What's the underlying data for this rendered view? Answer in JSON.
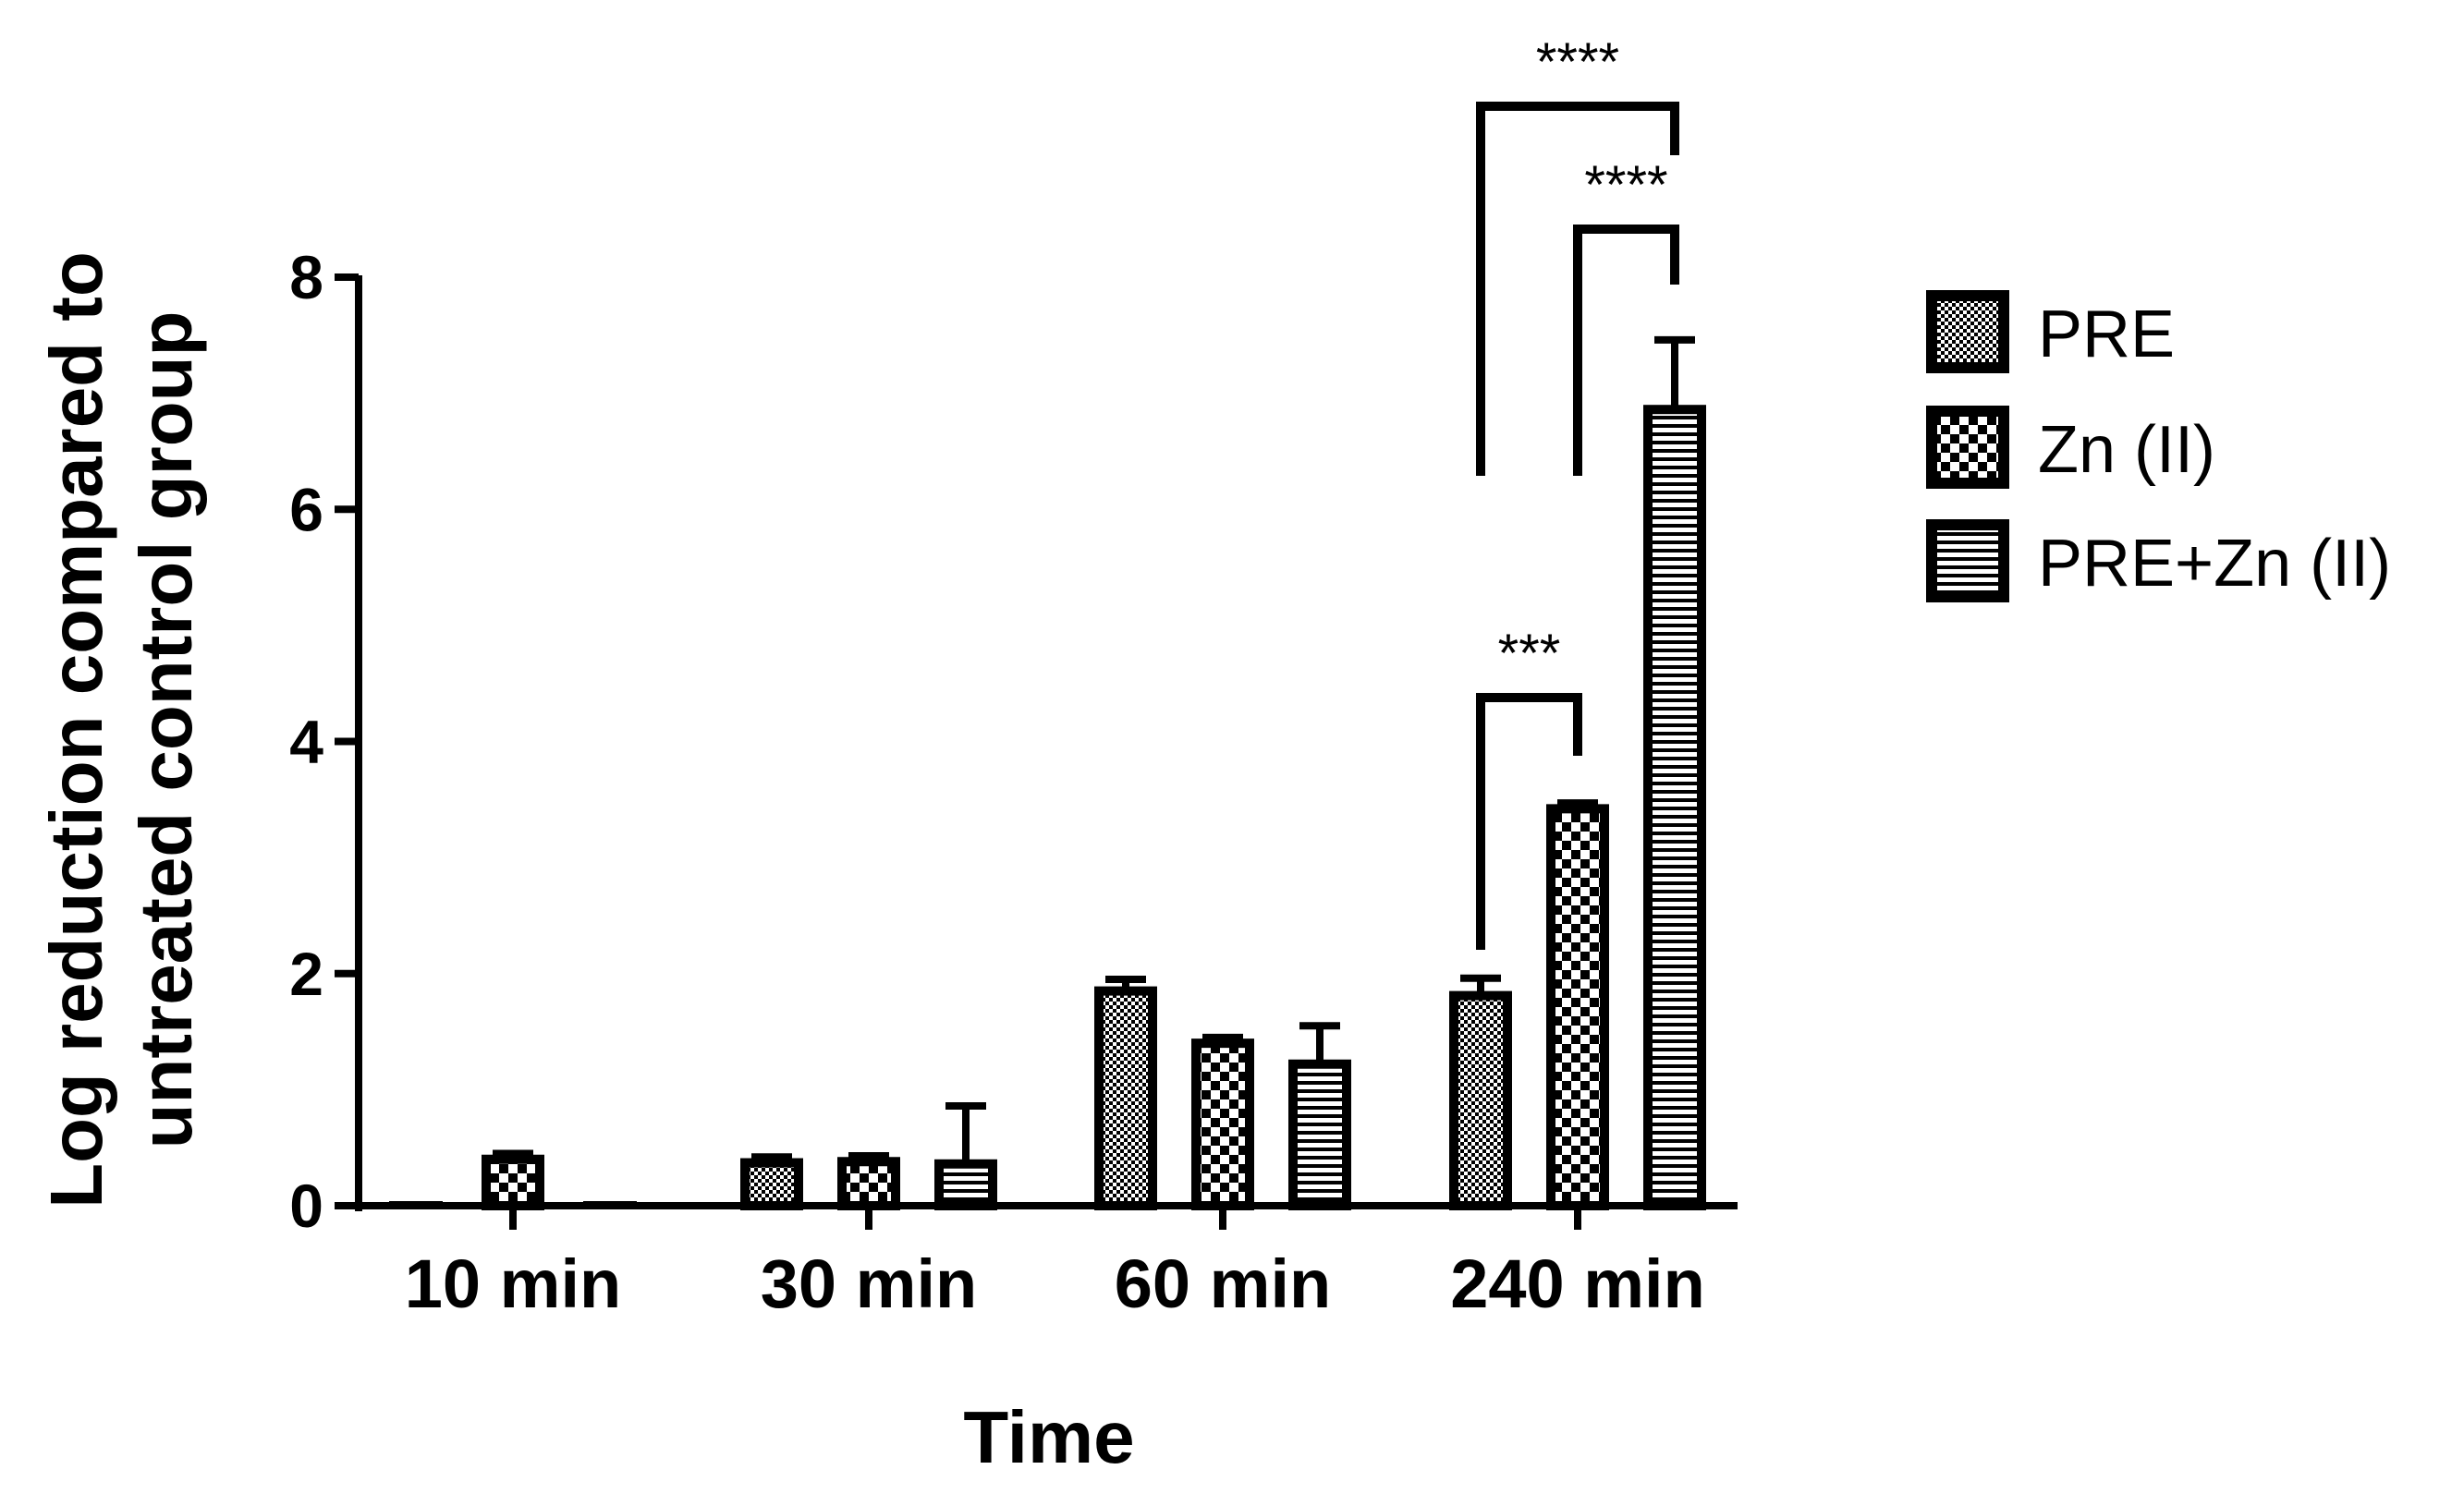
{
  "chart_data": {
    "type": "bar",
    "xlabel": "Time",
    "ylabel_line1": "Log reduction compared to",
    "ylabel_line2": "untreated control group",
    "categories": [
      "10 min",
      "30 min",
      "60 min",
      "240 min"
    ],
    "ylim": [
      0,
      8
    ],
    "yticks": [
      "0",
      "2",
      "4",
      "6",
      "8"
    ],
    "grid": false,
    "legend_position": "right",
    "series": [
      {
        "name": "PRE",
        "pattern": "fine-checker",
        "values": [
          0.0,
          0.37,
          1.85,
          1.81
        ],
        "errors": [
          0.0,
          0.05,
          0.1,
          0.15
        ]
      },
      {
        "name": "Zn (II)",
        "pattern": "coarse-checker",
        "values": [
          0.4,
          0.38,
          1.4,
          3.42
        ],
        "errors": [
          0.05,
          0.05,
          0.05,
          0.05
        ]
      },
      {
        "name": "PRE+Zn (II)",
        "pattern": "horizontal-lines",
        "values": [
          0.0,
          0.36,
          1.22,
          6.86
        ],
        "errors": [
          0.0,
          0.5,
          0.33,
          0.6
        ]
      }
    ],
    "significance": [
      {
        "category": "240 min",
        "from_series": 0,
        "to_series": 1,
        "label": "***"
      },
      {
        "category": "240 min",
        "from_series": 1,
        "to_series": 2,
        "label": "****"
      },
      {
        "category": "240 min",
        "from_series": 0,
        "to_series": 2,
        "label": "****"
      }
    ],
    "colors": {
      "bar_fill": "#ffffff",
      "bar_stroke": "#000000",
      "axis": "#000000"
    }
  }
}
